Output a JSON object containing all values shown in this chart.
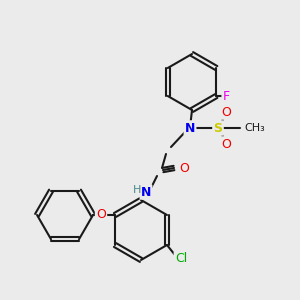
{
  "bg_color": "#ebebeb",
  "bond_color": "#1a1a1a",
  "atom_colors": {
    "N": "#0000ee",
    "O": "#ee0000",
    "S": "#cccc00",
    "F": "#ee00ee",
    "Cl": "#00aa00",
    "H_label": "#4a8a8a"
  },
  "fig_width": 3.0,
  "fig_height": 3.0,
  "dpi": 100
}
